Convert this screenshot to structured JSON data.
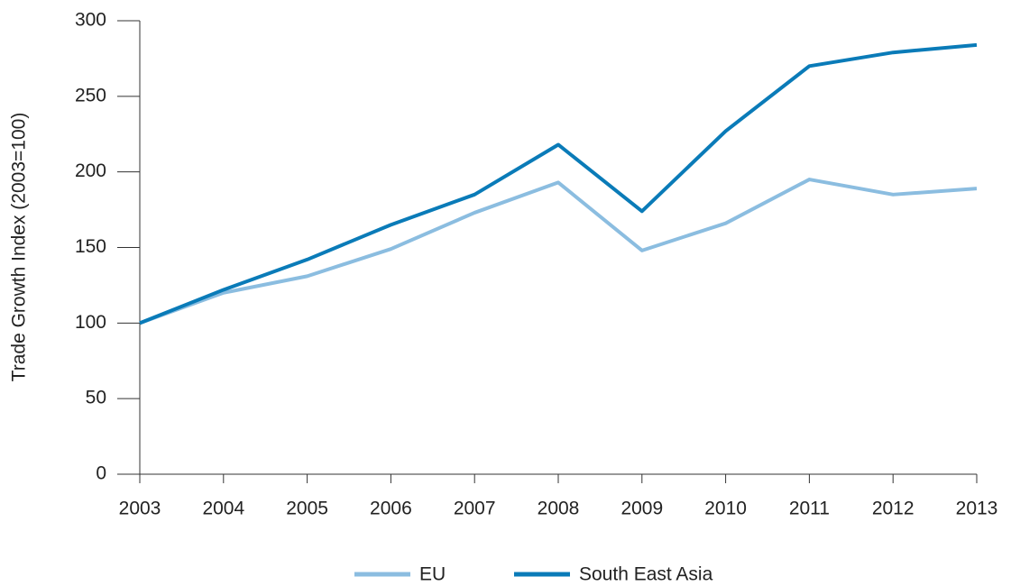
{
  "chart_data": {
    "type": "line",
    "y_label": "Trade Growth Index (2003=100)",
    "x": [
      2003,
      2004,
      2005,
      2006,
      2007,
      2008,
      2009,
      2010,
      2011,
      2012,
      2013
    ],
    "series": [
      {
        "name": "EU",
        "color": "#8bbde0",
        "values": [
          100,
          120,
          131,
          149,
          173,
          193,
          148,
          166,
          195,
          185,
          189
        ]
      },
      {
        "name": "South East Asia",
        "color": "#0a7bb8",
        "values": [
          100,
          122,
          142,
          165,
          185,
          218,
          174,
          227,
          270,
          279,
          284
        ]
      }
    ],
    "xlim": [
      2003,
      2013
    ],
    "xticks": [
      2003,
      2004,
      2005,
      2006,
      2007,
      2008,
      2009,
      2010,
      2011,
      2012,
      2013
    ],
    "ylim": [
      0,
      300
    ],
    "yticks": [
      0,
      50,
      100,
      150,
      200,
      250,
      300
    ],
    "grid": false,
    "legend": "bottom"
  }
}
